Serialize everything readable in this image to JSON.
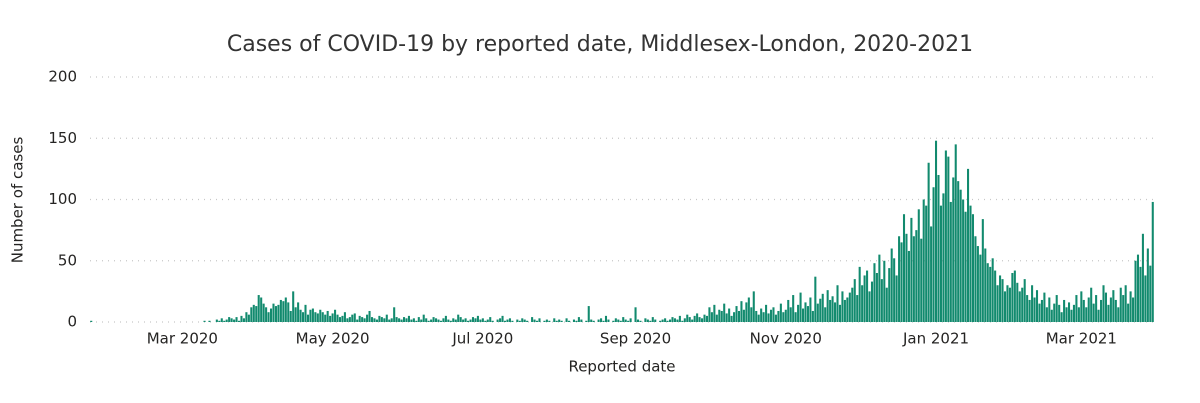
{
  "chart_data": {
    "type": "bar",
    "title": "Cases of COVID-19 by reported date, Middlesex-London, 2020-2021",
    "x_label": "Reported date",
    "y_label": "Number of cases",
    "color": "#128a6e",
    "grid": true,
    "ylim": [
      0,
      200
    ],
    "yticks": [
      0,
      50,
      100,
      150,
      200
    ],
    "categories": [
      null,
      null,
      null,
      null,
      null,
      null,
      null,
      null,
      null,
      null,
      null,
      null,
      null,
      null,
      null,
      null,
      null,
      null,
      null,
      null,
      null,
      null,
      null,
      null,
      null,
      null,
      null,
      null,
      null,
      null,
      null,
      null,
      null,
      null,
      null,
      null,
      null,
      "Mar 2020",
      null,
      null,
      null,
      null,
      null,
      null,
      null,
      null,
      null,
      null,
      null,
      null,
      null,
      null,
      null,
      null,
      null,
      null,
      null,
      null,
      null,
      null,
      null,
      null,
      null,
      null,
      null,
      null,
      null,
      null,
      null,
      null,
      null,
      null,
      null,
      null,
      null,
      null,
      null,
      null,
      null,
      null,
      null,
      null,
      null,
      null,
      null,
      null,
      null,
      null,
      null,
      null,
      null,
      null,
      null,
      null,
      null,
      null,
      null,
      null,
      "May 2020",
      null,
      null,
      null,
      null,
      null,
      null,
      null,
      null,
      null,
      null,
      null,
      null,
      null,
      null,
      null,
      null,
      null,
      null,
      null,
      null,
      null,
      null,
      null,
      null,
      null,
      null,
      null,
      null,
      null,
      null,
      null,
      null,
      null,
      null,
      null,
      null,
      null,
      null,
      null,
      null,
      null,
      null,
      null,
      null,
      null,
      null,
      null,
      null,
      null,
      null,
      null,
      null,
      null,
      null,
      null,
      null,
      null,
      null,
      null,
      null,
      "Jul 2020",
      null,
      null,
      null,
      null,
      null,
      null,
      null,
      null,
      null,
      null,
      null,
      null,
      null,
      null,
      null,
      null,
      null,
      null,
      null,
      null,
      null,
      null,
      null,
      null,
      null,
      null,
      null,
      null,
      null,
      null,
      null,
      null,
      null,
      null,
      null,
      null,
      null,
      null,
      null,
      null,
      null,
      null,
      null,
      null,
      null,
      null,
      null,
      null,
      null,
      null,
      null,
      null,
      null,
      null,
      null,
      null,
      null,
      null,
      null,
      null,
      null,
      "Sep 2020",
      null,
      null,
      null,
      null,
      null,
      null,
      null,
      null,
      null,
      null,
      null,
      null,
      null,
      null,
      null,
      null,
      null,
      null,
      null,
      null,
      null,
      null,
      null,
      null,
      null,
      null,
      null,
      null,
      null,
      null,
      null,
      null,
      null,
      null,
      null,
      null,
      null,
      null,
      null,
      null,
      null,
      null,
      null,
      null,
      null,
      null,
      null,
      null,
      null,
      null,
      null,
      null,
      null,
      null,
      null,
      null,
      null,
      null,
      null,
      null,
      "Nov 2020",
      null,
      null,
      null,
      null,
      null,
      null,
      null,
      null,
      null,
      null,
      null,
      null,
      null,
      null,
      null,
      null,
      null,
      null,
      null,
      null,
      null,
      null,
      null,
      null,
      null,
      null,
      null,
      null,
      null,
      null,
      null,
      null,
      null,
      null,
      null,
      null,
      null,
      null,
      null,
      null,
      null,
      null,
      null,
      null,
      null,
      null,
      null,
      null,
      null,
      null,
      null,
      null,
      null,
      null,
      null,
      null,
      null,
      null,
      null,
      null,
      "Jan 2021",
      null,
      null,
      null,
      null,
      null,
      null,
      null,
      null,
      null,
      null,
      null,
      null,
      null,
      null,
      null,
      null,
      null,
      null,
      null,
      null,
      null,
      null,
      null,
      null,
      null,
      null,
      null,
      null,
      null,
      null,
      null,
      null,
      null,
      null,
      null,
      null,
      null,
      null,
      null,
      null,
      null,
      null,
      null,
      null,
      null,
      null,
      null,
      null,
      null,
      null,
      null,
      null,
      null,
      null,
      null,
      null,
      null,
      null,
      "Mar 2021",
      null,
      null,
      null,
      null,
      null,
      null,
      null,
      null,
      null,
      null,
      null,
      null,
      null,
      null,
      null,
      null,
      null,
      null,
      null,
      null,
      null,
      null,
      null,
      null,
      null,
      null,
      null,
      null,
      null
    ],
    "values": [
      1,
      0,
      0,
      0,
      0,
      0,
      0,
      0,
      0,
      0,
      0,
      0,
      0,
      0,
      0,
      0,
      0,
      0,
      0,
      0,
      0,
      0,
      0,
      0,
      0,
      0,
      0,
      0,
      0,
      0,
      0,
      0,
      0,
      0,
      0,
      0,
      0,
      0,
      0,
      0,
      0,
      0,
      0,
      0,
      0,
      0,
      1,
      0,
      1,
      0,
      0,
      2,
      1,
      3,
      1,
      2,
      4,
      3,
      2,
      4,
      1,
      5,
      3,
      8,
      6,
      12,
      14,
      13,
      22,
      20,
      15,
      12,
      8,
      11,
      15,
      13,
      14,
      18,
      17,
      20,
      16,
      9,
      25,
      12,
      16,
      10,
      8,
      14,
      6,
      10,
      11,
      8,
      7,
      10,
      8,
      6,
      9,
      5,
      7,
      10,
      6,
      4,
      5,
      8,
      3,
      4,
      6,
      7,
      2,
      5,
      4,
      3,
      6,
      9,
      4,
      3,
      2,
      5,
      4,
      3,
      6,
      2,
      3,
      12,
      4,
      3,
      2,
      4,
      3,
      5,
      2,
      3,
      1,
      4,
      2,
      6,
      3,
      1,
      2,
      4,
      3,
      2,
      1,
      3,
      5,
      2,
      1,
      3,
      2,
      6,
      4,
      2,
      3,
      1,
      2,
      4,
      3,
      5,
      2,
      3,
      1,
      2,
      4,
      1,
      0,
      2,
      3,
      5,
      1,
      2,
      3,
      1,
      0,
      2,
      1,
      3,
      2,
      1,
      0,
      4,
      2,
      1,
      3,
      0,
      1,
      2,
      1,
      0,
      3,
      1,
      2,
      1,
      0,
      3,
      1,
      0,
      2,
      1,
      4,
      2,
      0,
      1,
      13,
      2,
      1,
      0,
      2,
      3,
      1,
      5,
      2,
      0,
      1,
      3,
      2,
      1,
      4,
      2,
      1,
      3,
      0,
      12,
      2,
      1,
      0,
      3,
      2,
      1,
      4,
      2,
      0,
      1,
      2,
      3,
      1,
      2,
      4,
      3,
      2,
      5,
      1,
      3,
      6,
      4,
      2,
      5,
      7,
      4,
      3,
      6,
      5,
      12,
      8,
      14,
      6,
      10,
      9,
      15,
      7,
      11,
      5,
      8,
      13,
      9,
      17,
      10,
      16,
      20,
      12,
      25,
      9,
      6,
      11,
      8,
      14,
      7,
      10,
      12,
      6,
      9,
      15,
      8,
      10,
      18,
      12,
      22,
      8,
      14,
      24,
      11,
      16,
      13,
      20,
      9,
      37,
      15,
      19,
      23,
      12,
      26,
      18,
      21,
      16,
      30,
      14,
      25,
      18,
      20,
      24,
      28,
      35,
      22,
      45,
      30,
      38,
      42,
      25,
      33,
      48,
      40,
      55,
      35,
      50,
      28,
      44,
      60,
      52,
      38,
      70,
      65,
      88,
      72,
      58,
      85,
      70,
      75,
      92,
      68,
      100,
      95,
      130,
      78,
      110,
      148,
      120,
      95,
      105,
      140,
      135,
      98,
      118,
      145,
      115,
      108,
      100,
      90,
      125,
      95,
      88,
      70,
      62,
      55,
      84,
      60,
      48,
      45,
      52,
      42,
      30,
      38,
      35,
      25,
      30,
      28,
      40,
      42,
      32,
      25,
      28,
      35,
      22,
      18,
      30,
      20,
      26,
      15,
      18,
      24,
      12,
      20,
      10,
      15,
      22,
      14,
      8,
      18,
      12,
      16,
      10,
      14,
      22,
      12,
      25,
      18,
      12,
      20,
      28,
      15,
      22,
      10,
      18,
      30,
      24,
      14,
      20,
      26,
      18,
      12,
      28,
      22,
      30,
      15,
      25,
      20,
      50,
      55,
      45,
      72,
      38,
      60,
      46,
      98
    ]
  }
}
